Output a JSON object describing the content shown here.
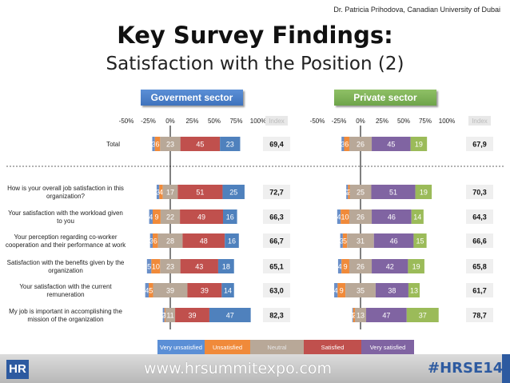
{
  "credit": "Dr. Patricia Prihodova, Canadian University of Dubai",
  "title_line1": "Key Survey Findings:",
  "title_line2": "Satisfaction with the Position (2)",
  "footer": {
    "logo": "HR",
    "website": "www.hrsummitexpo.com",
    "hashtag": "#HRSE14"
  },
  "chart_data": {
    "type": "bar",
    "stacked": "diverging",
    "scale": "percent of respondents",
    "axis_ticks": [
      "-50%",
      "-25%",
      "0%",
      "25%",
      "50%",
      "75%",
      "100%"
    ],
    "xlim": [
      -50,
      100
    ],
    "index_label": "Index",
    "legend": [
      {
        "name": "Very unsatisfied",
        "color": "#6a8fc8"
      },
      {
        "name": "Unsatisfied",
        "color": "#f08a3a"
      },
      {
        "name": "Neutral",
        "color": "#b8a898"
      },
      {
        "name": "Satisfied",
        "color": "#c0504d"
      },
      {
        "name": "Very satisfied",
        "color": "#8064a2"
      }
    ],
    "panels": [
      {
        "name": "Goverment sector",
        "satisfied_color": "#c0504d",
        "very_satisfied_color": "#4f81bd",
        "rows": [
          {
            "label": "Total",
            "values": [
              3,
              6,
              23,
              45,
              23
            ],
            "index": "69,4"
          },
          {
            "label": "How is your overall job satisfaction in this organization?",
            "values": [
              3,
              4,
              17,
              51,
              25
            ],
            "index": "72,7"
          },
          {
            "label": "Your satisfaction with the workload given to you",
            "values": [
              4,
              9,
              22,
              49,
              16
            ],
            "index": "66,3"
          },
          {
            "label": "Your perception regarding co-worker cooperation and their performance at work",
            "values": [
              3,
              6,
              28,
              48,
              16
            ],
            "index": "66,7"
          },
          {
            "label": "Satisfaction with the benefits given by the organization",
            "values": [
              5,
              10,
              23,
              43,
              18
            ],
            "index": "65,1"
          },
          {
            "label": "Your satisfaction with the current remuneration",
            "values": [
              4,
              5,
              39,
              39,
              14
            ],
            "index": "63,0"
          },
          {
            "label": "My job is important in accomplishing the mission of the organization",
            "values": [
              2,
              1,
              11,
              39,
              47
            ],
            "index": "82,3"
          }
        ]
      },
      {
        "name": "Private sector",
        "satisfied_color": "#8064a2",
        "very_satisfied_color": "#9bbb59",
        "rows": [
          {
            "label": "Total",
            "values": [
              3,
              6,
              26,
              45,
              19
            ],
            "index": "67,9"
          },
          {
            "label": "How is your overall job satisfaction in this organization?",
            "values": [
              2,
              2,
              25,
              51,
              19
            ],
            "index": "70,3"
          },
          {
            "label": "Your satisfaction with the workload given to you",
            "values": [
              4,
              10,
              26,
              46,
              14
            ],
            "index": "64,3"
          },
          {
            "label": "Your perception regarding co-worker cooperation and their performance at work",
            "values": [
              3,
              5,
              31,
              46,
              15
            ],
            "index": "66,6"
          },
          {
            "label": "Satisfaction with the benefits given by the organization",
            "values": [
              4,
              9,
              26,
              42,
              19
            ],
            "index": "65,8"
          },
          {
            "label": "Your satisfaction with the current remuneration",
            "values": [
              4,
              9,
              35,
              38,
              13
            ],
            "index": "61,7"
          },
          {
            "label": "My job is important in accomplishing the mission of the organization",
            "values": [
              1,
              2,
              13,
              47,
              37
            ],
            "index": "78,7"
          }
        ]
      }
    ]
  }
}
